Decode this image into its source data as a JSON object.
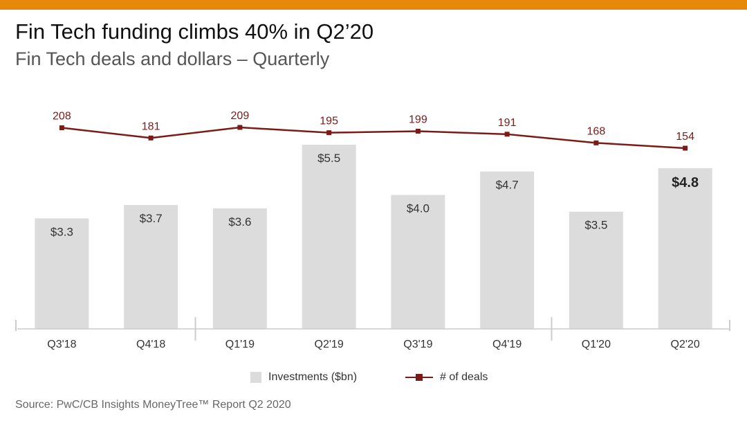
{
  "title": "Fin Tech funding climbs 40% in Q2’20",
  "subtitle": "Fin Tech deals and dollars – Quarterly",
  "source": "Source: PwC/CB Insights MoneyTree™ Report Q2 2020",
  "colors": {
    "accent_bar": "#E8880A",
    "bars": "#DCDCDC",
    "deals_line": "#7B1A16"
  },
  "chart_data": {
    "type": "bar",
    "categories": [
      "Q3'18",
      "Q4'18",
      "Q1'19",
      "Q2'19",
      "Q3'19",
      "Q4'19",
      "Q1'20",
      "Q2'20"
    ],
    "series": [
      {
        "name": "Investments ($bn)",
        "type": "bar",
        "values": [
          3.3,
          3.7,
          3.6,
          5.5,
          4.0,
          4.7,
          3.5,
          4.8
        ],
        "labels": [
          "$3.3",
          "$3.7",
          "$3.6",
          "$5.5",
          "$4.0",
          "$4.7",
          "$3.5",
          "$4.8"
        ]
      },
      {
        "name": "# of deals",
        "type": "line",
        "values": [
          208,
          181,
          209,
          195,
          199,
          191,
          168,
          154
        ],
        "labels": [
          "208",
          "181",
          "209",
          "195",
          "199",
          "191",
          "168",
          "154"
        ]
      }
    ],
    "highlight_category": "Q2'20",
    "legend_position": "bottom-center",
    "grid": false
  }
}
